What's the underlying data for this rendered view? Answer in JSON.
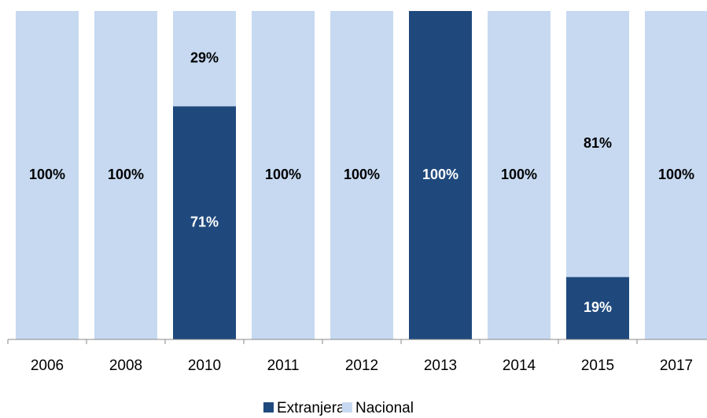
{
  "chart_data": {
    "type": "stacked_bar",
    "categories": [
      "2006",
      "2008",
      "2010",
      "2011",
      "2012",
      "2013",
      "2014",
      "2015",
      "2017"
    ],
    "series": [
      {
        "name": "Extranjera",
        "color": "#1f497d",
        "values": [
          0,
          0,
          71,
          0,
          0,
          100,
          0,
          19,
          0
        ],
        "value_labels": [
          null,
          null,
          "71%",
          null,
          null,
          "100%",
          null,
          "19%",
          null
        ]
      },
      {
        "name": "Nacional",
        "color": "#c6d9f1",
        "values": [
          100,
          100,
          29,
          100,
          100,
          0,
          100,
          81,
          100
        ],
        "value_labels": [
          "100%",
          "100%",
          "29%",
          "100%",
          "100%",
          null,
          "100%",
          "81%",
          "100%"
        ]
      }
    ],
    "ylim": [
      0,
      100
    ],
    "legend": "bottom"
  }
}
